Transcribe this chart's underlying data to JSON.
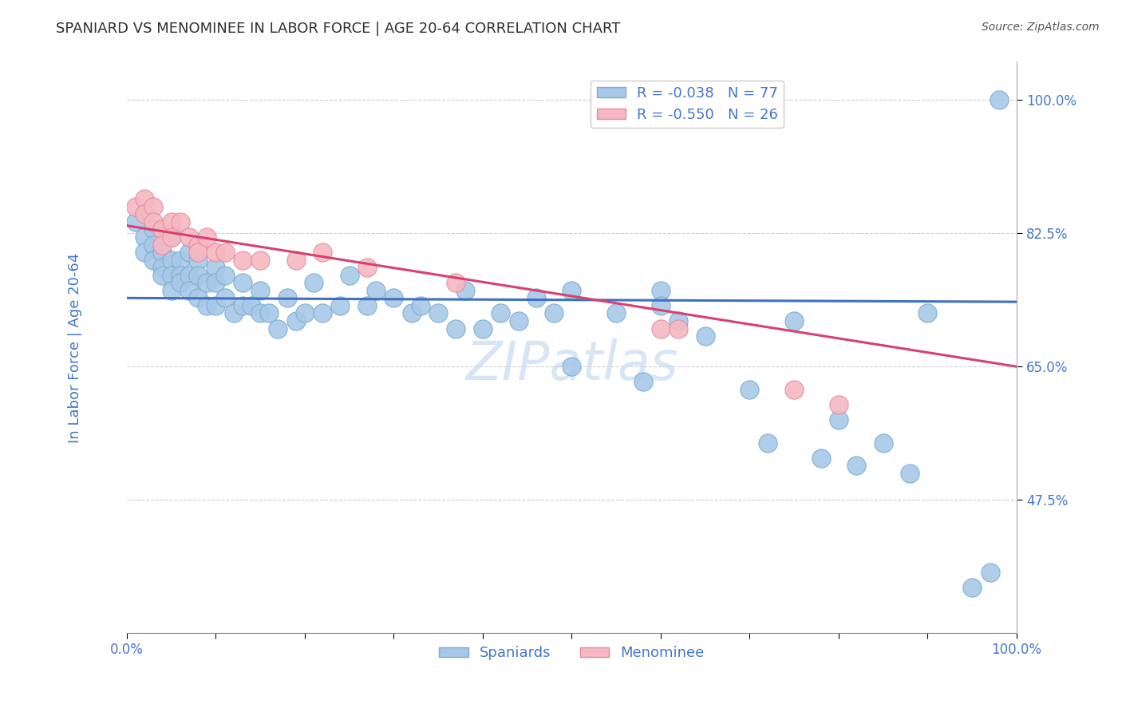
{
  "title": "SPANIARD VS MENOMINEE IN LABOR FORCE | AGE 20-64 CORRELATION CHART",
  "source_text": "Source: ZipAtlas.com",
  "ylabel": "In Labor Force | Age 20-64",
  "xmin": 0.0,
  "xmax": 1.0,
  "ymin": 0.3,
  "ymax": 1.05,
  "yticks": [
    0.475,
    0.65,
    0.825,
    1.0
  ],
  "ytick_labels": [
    "47.5%",
    "65.0%",
    "82.5%",
    "100.0%"
  ],
  "grid_color": "#d0d0d0",
  "background_color": "#ffffff",
  "spaniard_color": "#a8c8e8",
  "menominee_color": "#f5b8c0",
  "spaniard_edge_color": "#7aadce",
  "menominee_edge_color": "#e888a0",
  "trend_spaniard_color": "#4070c0",
  "trend_menominee_color": "#d84070",
  "legend_R_spaniard": "R = -0.038",
  "legend_N_spaniard": "N = 77",
  "legend_R_menominee": "R = -0.550",
  "legend_N_menominee": "N = 26",
  "legend_label_spaniard": "Spaniards",
  "legend_label_menominee": "Menominee",
  "title_color": "#303030",
  "axis_label_color": "#4477cc",
  "tick_label_color": "#4477cc",
  "source_color": "#555555",
  "watermark_color": "#c8daf0",
  "spaniard_x": [
    0.01,
    0.02,
    0.02,
    0.03,
    0.03,
    0.03,
    0.04,
    0.04,
    0.04,
    0.05,
    0.05,
    0.05,
    0.05,
    0.06,
    0.06,
    0.06,
    0.07,
    0.07,
    0.07,
    0.08,
    0.08,
    0.08,
    0.09,
    0.09,
    0.1,
    0.1,
    0.1,
    0.11,
    0.11,
    0.12,
    0.13,
    0.13,
    0.14,
    0.15,
    0.15,
    0.16,
    0.17,
    0.18,
    0.19,
    0.2,
    0.21,
    0.22,
    0.24,
    0.25,
    0.27,
    0.28,
    0.3,
    0.32,
    0.33,
    0.35,
    0.37,
    0.38,
    0.4,
    0.42,
    0.44,
    0.46,
    0.48,
    0.5,
    0.5,
    0.55,
    0.58,
    0.6,
    0.6,
    0.62,
    0.65,
    0.7,
    0.72,
    0.75,
    0.78,
    0.8,
    0.82,
    0.85,
    0.88,
    0.9,
    0.95,
    0.97,
    0.98
  ],
  "spaniard_y": [
    0.84,
    0.82,
    0.8,
    0.83,
    0.81,
    0.79,
    0.8,
    0.78,
    0.77,
    0.82,
    0.79,
    0.77,
    0.75,
    0.79,
    0.77,
    0.76,
    0.8,
    0.77,
    0.75,
    0.79,
    0.77,
    0.74,
    0.76,
    0.73,
    0.78,
    0.76,
    0.73,
    0.77,
    0.74,
    0.72,
    0.76,
    0.73,
    0.73,
    0.75,
    0.72,
    0.72,
    0.7,
    0.74,
    0.71,
    0.72,
    0.76,
    0.72,
    0.73,
    0.77,
    0.73,
    0.75,
    0.74,
    0.72,
    0.73,
    0.72,
    0.7,
    0.75,
    0.7,
    0.72,
    0.71,
    0.74,
    0.72,
    0.75,
    0.65,
    0.72,
    0.63,
    0.75,
    0.73,
    0.71,
    0.69,
    0.62,
    0.55,
    0.71,
    0.53,
    0.58,
    0.52,
    0.55,
    0.51,
    0.72,
    0.36,
    0.38,
    1.0
  ],
  "menominee_x": [
    0.01,
    0.02,
    0.02,
    0.03,
    0.03,
    0.04,
    0.04,
    0.05,
    0.05,
    0.06,
    0.07,
    0.08,
    0.08,
    0.09,
    0.1,
    0.11,
    0.13,
    0.15,
    0.19,
    0.22,
    0.27,
    0.37,
    0.6,
    0.62,
    0.75,
    0.8
  ],
  "menominee_y": [
    0.86,
    0.87,
    0.85,
    0.86,
    0.84,
    0.83,
    0.81,
    0.84,
    0.82,
    0.84,
    0.82,
    0.81,
    0.8,
    0.82,
    0.8,
    0.8,
    0.79,
    0.79,
    0.79,
    0.8,
    0.78,
    0.76,
    0.7,
    0.7,
    0.62,
    0.6
  ],
  "spaniard_trend_x0": 0.0,
  "spaniard_trend_x1": 1.0,
  "spaniard_trend_y0": 0.74,
  "spaniard_trend_y1": 0.735,
  "menominee_trend_x0": 0.0,
  "menominee_trend_x1": 1.0,
  "menominee_trend_y0": 0.835,
  "menominee_trend_y1": 0.65
}
